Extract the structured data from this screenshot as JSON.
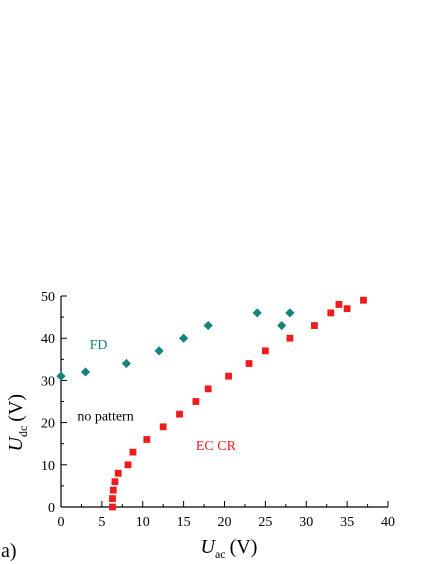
{
  "panel_label": "a)",
  "chart_data": {
    "type": "scatter",
    "xlabel": {
      "main": "U",
      "sub": "ac",
      "unit": "(V)"
    },
    "ylabel": {
      "main": "U",
      "sub": "dc",
      "unit": "(V)"
    },
    "xlim": [
      0,
      40
    ],
    "ylim": [
      0,
      50
    ],
    "xticks": [
      0,
      5,
      10,
      15,
      20,
      25,
      30,
      35,
      40
    ],
    "yticks": [
      0,
      10,
      20,
      30,
      40,
      50
    ],
    "grid": false,
    "series": [
      {
        "name": "FD",
        "marker": "diamond",
        "color": "#17827a",
        "points": [
          [
            0,
            31
          ],
          [
            3,
            32
          ],
          [
            8,
            34
          ],
          [
            12,
            37
          ],
          [
            15,
            40
          ],
          [
            18,
            43
          ],
          [
            24,
            46
          ],
          [
            27,
            43
          ],
          [
            28,
            46
          ]
        ]
      },
      {
        "name": "EC CR",
        "marker": "square",
        "color": "#ee1c1c",
        "points": [
          [
            6.3,
            0
          ],
          [
            6.3,
            2
          ],
          [
            6.4,
            4
          ],
          [
            6.6,
            6
          ],
          [
            7.0,
            8
          ],
          [
            8.2,
            10
          ],
          [
            8.8,
            13
          ],
          [
            10.5,
            16
          ],
          [
            12.5,
            19
          ],
          [
            14.5,
            22
          ],
          [
            16.5,
            25
          ],
          [
            18,
            28
          ],
          [
            20.5,
            31
          ],
          [
            23,
            34
          ],
          [
            25,
            37
          ],
          [
            28,
            40
          ],
          [
            31,
            43
          ],
          [
            33,
            46
          ],
          [
            34,
            48
          ],
          [
            35,
            47
          ],
          [
            37,
            49
          ]
        ]
      }
    ],
    "annotations": [
      {
        "text": "FD",
        "x": 3.5,
        "y": 37.5,
        "color": "#17827a"
      },
      {
        "text": "no pattern",
        "x": 2,
        "y": 20.5,
        "color": "#000000"
      },
      {
        "text": "EC CR",
        "x": 16.5,
        "y": 13.5,
        "color": "#ee1c1c"
      }
    ]
  }
}
